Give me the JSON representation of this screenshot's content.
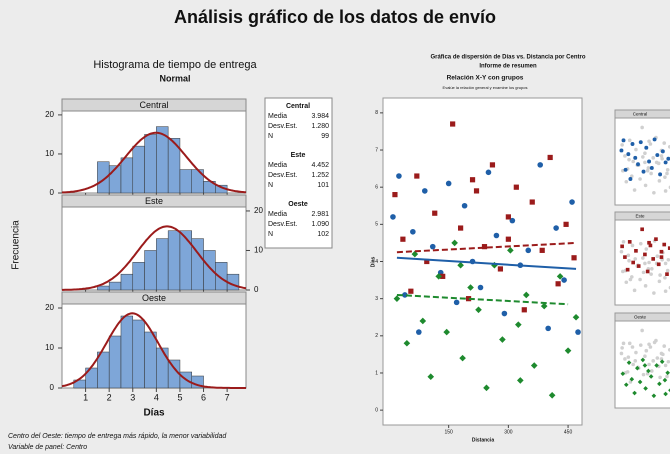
{
  "title": "Análisis gráfico de los datos de envío",
  "notes": [
    "Centro del Oeste: tiempo de entrega más rápido, la menor variabilidad",
    "Variable de panel: Centro"
  ],
  "chart_data": [
    {
      "type": "histogram",
      "title": "Histograma de tiempo de entrega",
      "subtitle": "Normal",
      "xlabel": "Días",
      "ylabel": "Frecuencia",
      "xlim": [
        0,
        7.8
      ],
      "xticks": [
        1,
        2,
        3,
        4,
        5,
        6,
        7
      ],
      "ylim": [
        0,
        21
      ],
      "yticks": [
        0,
        10,
        20
      ],
      "color": "#7ea6d8",
      "curve_color": "#9b1b1b",
      "stat_labels": {
        "mean": "Media",
        "sd": "Desv.Est.",
        "n": "N"
      },
      "panels": [
        {
          "name": "Central",
          "bins": [
            1.5,
            2,
            2.5,
            3,
            3.5,
            4,
            4.5,
            5,
            5.5,
            6,
            6.5,
            7
          ],
          "counts": [
            8,
            7,
            9,
            12,
            15,
            17,
            14,
            6,
            6,
            3,
            2
          ],
          "mean": 3.984,
          "sd": {
            "value": 1.28,
            "label": "1.280"
          },
          "n": 99
        },
        {
          "name": "Este",
          "bins": [
            1.5,
            2,
            2.5,
            3,
            3.5,
            4,
            4.5,
            5,
            5.5,
            6,
            6.5,
            7,
            7.5
          ],
          "counts": [
            1,
            2,
            4,
            7,
            10,
            13,
            15,
            15,
            13,
            10,
            7,
            4
          ],
          "mean": 4.452,
          "sd": 1.252,
          "n": 101
        },
        {
          "name": "Oeste",
          "bins": [
            0.5,
            1,
            1.5,
            2,
            2.5,
            3,
            3.5,
            4,
            4.5,
            5,
            5.5,
            6
          ],
          "counts": [
            2,
            5,
            9,
            13,
            18,
            17,
            14,
            10,
            7,
            4,
            3
          ],
          "mean": 2.981,
          "sd": {
            "value": 1.09,
            "label": "1.090"
          },
          "n": 102
        }
      ]
    },
    {
      "type": "scatter",
      "title": "Gráfica de dispersión de Días vs. Distancia por Centro",
      "subtitle": "Informe de resumen",
      "heading": "Relación X-Y con grupos",
      "caption": "Evalúe la relación general y examine los grupos",
      "xlabel": "Distancia",
      "ylabel": "Días",
      "xlim": [
        -15,
        485
      ],
      "xticks": [
        150,
        300,
        450
      ],
      "ylim": [
        -0.4,
        8.4
      ],
      "yticks": [
        0,
        1,
        2,
        3,
        4,
        5,
        6,
        7,
        8
      ],
      "series": [
        {
          "name": "Central",
          "color": "#1f5fa8",
          "marker": "circle",
          "line_style": "solid",
          "x": [
            10,
            25,
            40,
            60,
            75,
            90,
            110,
            130,
            150,
            170,
            190,
            210,
            230,
            250,
            270,
            290,
            310,
            330,
            350,
            380,
            400,
            420,
            440,
            460,
            475
          ],
          "values": [
            5.2,
            6.3,
            3.1,
            4.8,
            2.1,
            5.9,
            4.4,
            3.7,
            6.1,
            2.9,
            5.5,
            4.0,
            3.3,
            6.4,
            4.7,
            2.6,
            5.1,
            3.9,
            4.3,
            6.6,
            2.2,
            4.9,
            3.5,
            5.6,
            2.1
          ],
          "fit": {
            "x": [
              20,
              470
            ],
            "y": [
              4.1,
              3.8
            ]
          }
        },
        {
          "name": "Este",
          "color": "#9b1b1b",
          "marker": "square",
          "line_style": "dashed",
          "x": [
            15,
            35,
            55,
            70,
            95,
            115,
            135,
            160,
            180,
            200,
            220,
            240,
            260,
            280,
            300,
            320,
            340,
            360,
            385,
            405,
            425,
            445,
            465,
            300,
            210
          ],
          "values": [
            5.8,
            4.6,
            3.2,
            6.3,
            4.0,
            5.3,
            3.6,
            7.7,
            4.9,
            3.0,
            5.9,
            4.4,
            6.6,
            3.8,
            5.2,
            6.0,
            2.7,
            5.6,
            4.3,
            6.8,
            3.4,
            5.0,
            4.1,
            4.6,
            6.2
          ],
          "fit": {
            "x": [
              20,
              470
            ],
            "y": [
              4.25,
              4.5
            ]
          }
        },
        {
          "name": "Oeste",
          "color": "#1e8a2e",
          "marker": "diamond",
          "line_style": "dashed",
          "x": [
            20,
            45,
            65,
            85,
            105,
            125,
            145,
            165,
            185,
            205,
            225,
            245,
            265,
            285,
            305,
            325,
            345,
            365,
            390,
            410,
            430,
            450,
            470,
            180,
            330
          ],
          "values": [
            3.0,
            1.8,
            4.2,
            2.4,
            0.9,
            3.6,
            2.1,
            4.5,
            1.4,
            3.3,
            2.7,
            0.6,
            3.9,
            1.9,
            4.3,
            2.3,
            3.1,
            1.2,
            2.8,
            0.4,
            3.6,
            1.6,
            2.5,
            3.9,
            0.8
          ],
          "fit": {
            "x": [
              20,
              450
            ],
            "y": [
              3.1,
              2.85
            ]
          }
        }
      ]
    }
  ]
}
